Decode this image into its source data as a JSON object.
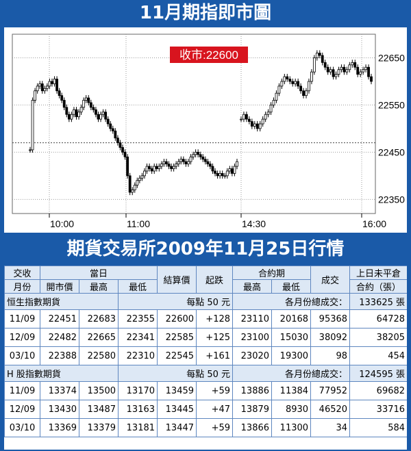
{
  "chart_title": "11月期指即市圖",
  "table_title": "期貨交易所2009年11月25日行情",
  "chart_data": {
    "type": "candlestick",
    "title": "11月期指即市圖",
    "annotation": "收市:22600",
    "annotation_color": "#d8141e",
    "prev_close_line": 22470,
    "y_ticks": [
      "22650",
      "22550",
      "22450",
      "22350"
    ],
    "x_ticks": [
      "10:00",
      "11:00",
      "14:30",
      "16:00"
    ],
    "ylim": [
      22320,
      22700
    ],
    "grid": true,
    "sessions": [
      {
        "name": "morning",
        "values": [
          22455,
          22560,
          22580,
          22590,
          22595,
          22580,
          22585,
          22590,
          22600,
          22595,
          22605,
          22580,
          22570,
          22560,
          22545,
          22530,
          22520,
          22530,
          22540,
          22525,
          22535,
          22545,
          22560,
          22565,
          22555,
          22545,
          22540,
          22530,
          22520,
          22530,
          22535,
          22520,
          22510,
          22500,
          22495,
          22480,
          22470,
          22460,
          22450,
          22440,
          22400,
          22365,
          22370,
          22380,
          22390,
          22395,
          22400,
          22410,
          22420,
          22415,
          22410,
          22420,
          22415,
          22420,
          22425,
          22430,
          22425,
          22420,
          22415,
          22420,
          22425,
          22430,
          22435,
          22430,
          22425,
          22430,
          22440,
          22445,
          22450,
          22445,
          22440,
          22435,
          22430,
          22425,
          22420,
          22410,
          22405,
          22400,
          22405,
          22400,
          22400,
          22410,
          22415,
          22405,
          22420,
          22430
        ]
      },
      {
        "name": "afternoon",
        "values": [
          22520,
          22530,
          22520,
          22515,
          22505,
          22510,
          22500,
          22510,
          22520,
          22530,
          22535,
          22550,
          22560,
          22575,
          22590,
          22600,
          22610,
          22605,
          22600,
          22595,
          22600,
          22590,
          22580,
          22570,
          22580,
          22600,
          22620,
          22650,
          22660,
          22655,
          22640,
          22630,
          22620,
          22625,
          22610,
          22615,
          22625,
          22630,
          22620,
          22625,
          22635,
          22640,
          22630,
          22615,
          22620,
          22625,
          22630,
          22610,
          22600
        ]
      }
    ]
  },
  "table": {
    "header": {
      "col_delivery": "交收",
      "col_month": "月份",
      "group_today": "當日",
      "col_open": "開市價",
      "col_high": "最高",
      "col_low": "最低",
      "col_settle": "結算價",
      "col_change": "起跌",
      "group_contract": "合約期",
      "col_c_high": "最高",
      "col_c_low": "最低",
      "col_volume": "成交",
      "col_oi_1": "上日未平倉",
      "col_oi_2": "合約（張）"
    },
    "sections": [
      {
        "name": "恒生指數期貨",
        "unit": "每點 50 元",
        "total_label": "各月份總成交：",
        "total": "133625 張",
        "rows": [
          {
            "month": "11/09",
            "open": "22451",
            "high": "22683",
            "low": "22355",
            "settle": "22600",
            "change": "+128",
            "c_high": "23110",
            "c_low": "20168",
            "volume": "95368",
            "oi": "64728"
          },
          {
            "month": "12/09",
            "open": "22482",
            "high": "22665",
            "low": "22341",
            "settle": "22585",
            "change": "+125",
            "c_high": "23100",
            "c_low": "15030",
            "volume": "38092",
            "oi": "38205"
          },
          {
            "month": "03/10",
            "open": "22388",
            "high": "22580",
            "low": "22310",
            "settle": "22545",
            "change": "+161",
            "c_high": "23020",
            "c_low": "19300",
            "volume": "98",
            "oi": "454"
          }
        ]
      },
      {
        "name": "H 股指數期貨",
        "unit": "每點 50 元",
        "total_label": "各月份總成交：",
        "total": "124595 張",
        "rows": [
          {
            "month": "11/09",
            "open": "13374",
            "high": "13500",
            "low": "13170",
            "settle": "13459",
            "change": "+59",
            "c_high": "13886",
            "c_low": "11384",
            "volume": "77952",
            "oi": "69682"
          },
          {
            "month": "12/09",
            "open": "13430",
            "high": "13487",
            "low": "13163",
            "settle": "13445",
            "change": "+47",
            "c_high": "13879",
            "c_low": "8930",
            "volume": "46520",
            "oi": "33716"
          },
          {
            "month": "03/10",
            "open": "13369",
            "high": "13379",
            "low": "13181",
            "settle": "13447",
            "change": "+59",
            "c_high": "13866",
            "c_low": "11300",
            "volume": "34",
            "oi": "584"
          }
        ]
      }
    ]
  }
}
